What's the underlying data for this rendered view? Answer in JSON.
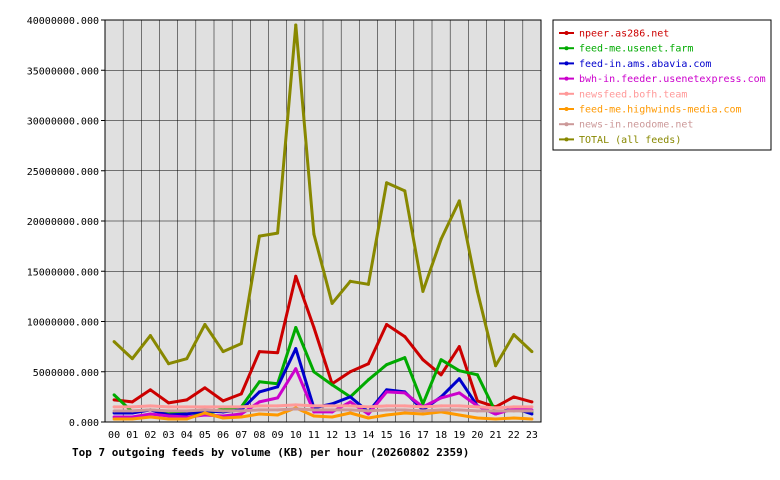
{
  "chart_data": {
    "type": "line",
    "title": "Top 7 outgoing feeds by volume (KB) per hour (20260802 2359)",
    "categories": [
      "00",
      "01",
      "02",
      "03",
      "04",
      "05",
      "06",
      "07",
      "08",
      "09",
      "10",
      "11",
      "12",
      "13",
      "14",
      "15",
      "16",
      "17",
      "18",
      "19",
      "20",
      "21",
      "22",
      "23"
    ],
    "ylim": [
      0,
      40000000
    ],
    "yticks": [
      "0.000",
      "5000000.000",
      "10000000.000",
      "15000000.000",
      "20000000.000",
      "25000000.000",
      "30000000.000",
      "35000000.000",
      "40000000.000"
    ],
    "grid": true,
    "legend_position": "right",
    "series": [
      {
        "name": "npeer.as286.net",
        "color": "#cc0000",
        "values": [
          2200000,
          2000000,
          3200000,
          1900000,
          2200000,
          3400000,
          2100000,
          2800000,
          7000000,
          6900000,
          14500000,
          9400000,
          3800000,
          5000000,
          5800000,
          9700000,
          8500000,
          6200000,
          4700000,
          7500000,
          2100000,
          1500000,
          2500000,
          2000000
        ]
      },
      {
        "name": "feed-me.usenet.farm",
        "color": "#00aa00",
        "values": [
          2700000,
          1000000,
          1200000,
          1000000,
          900000,
          800000,
          1300000,
          1500000,
          4000000,
          3800000,
          9400000,
          5000000,
          3700000,
          2500000,
          4200000,
          5700000,
          6400000,
          1800000,
          6200000,
          5100000,
          4700000,
          1000000,
          1200000,
          1000000
        ]
      },
      {
        "name": "feed-in.ams.abavia.com",
        "color": "#0000cc",
        "values": [
          900000,
          900000,
          1200000,
          700000,
          800000,
          1100000,
          1000000,
          1200000,
          3000000,
          3500000,
          7300000,
          1400000,
          1800000,
          2500000,
          1000000,
          3200000,
          3000000,
          1200000,
          2500000,
          4300000,
          1600000,
          800000,
          1400000,
          800000
        ]
      },
      {
        "name": "bwh-in.feeder.usenetexpress.com",
        "color": "#cc00cc",
        "values": [
          500000,
          500000,
          800000,
          600000,
          500000,
          700000,
          600000,
          800000,
          2000000,
          2400000,
          5300000,
          1000000,
          1000000,
          2000000,
          800000,
          3000000,
          2900000,
          1500000,
          2400000,
          2900000,
          1600000,
          800000,
          1300000,
          1200000
        ]
      },
      {
        "name": "newsfeed.bofh.team",
        "color": "#ff9999",
        "values": [
          1500000,
          1500000,
          1600000,
          1500000,
          1500000,
          1500000,
          1500000,
          1500000,
          1600000,
          1600000,
          1700000,
          1600000,
          1600000,
          1600000,
          1500000,
          1600000,
          1600000,
          1500000,
          1600000,
          1600000,
          1500000,
          1400000,
          1500000,
          1500000
        ]
      },
      {
        "name": "feed-me.highwinds-media.com",
        "color": "#ff9900",
        "values": [
          300000,
          300000,
          500000,
          300000,
          300000,
          900000,
          400000,
          500000,
          800000,
          700000,
          1400000,
          600000,
          500000,
          900000,
          400000,
          700000,
          900000,
          800000,
          1000000,
          700000,
          400000,
          300000,
          400000,
          300000
        ]
      },
      {
        "name": "news-in.neodome.net",
        "color": "#cc9999",
        "values": [
          1100000,
          1100000,
          1200000,
          1100000,
          1100000,
          1200000,
          1100000,
          1100000,
          1200000,
          1200000,
          1300000,
          1200000,
          1200000,
          1200000,
          1100000,
          1200000,
          1200000,
          1100000,
          1200000,
          1200000,
          1100000,
          1100000,
          1100000,
          1100000
        ]
      },
      {
        "name": "TOTAL (all feeds)",
        "color": "#888800",
        "values": [
          8000000,
          6300000,
          8600000,
          5800000,
          6300000,
          9700000,
          7000000,
          7800000,
          18500000,
          18800000,
          39500000,
          18700000,
          11800000,
          14000000,
          13700000,
          23800000,
          23000000,
          13000000,
          18200000,
          22000000,
          13000000,
          5600000,
          8700000,
          7000000
        ]
      }
    ]
  }
}
